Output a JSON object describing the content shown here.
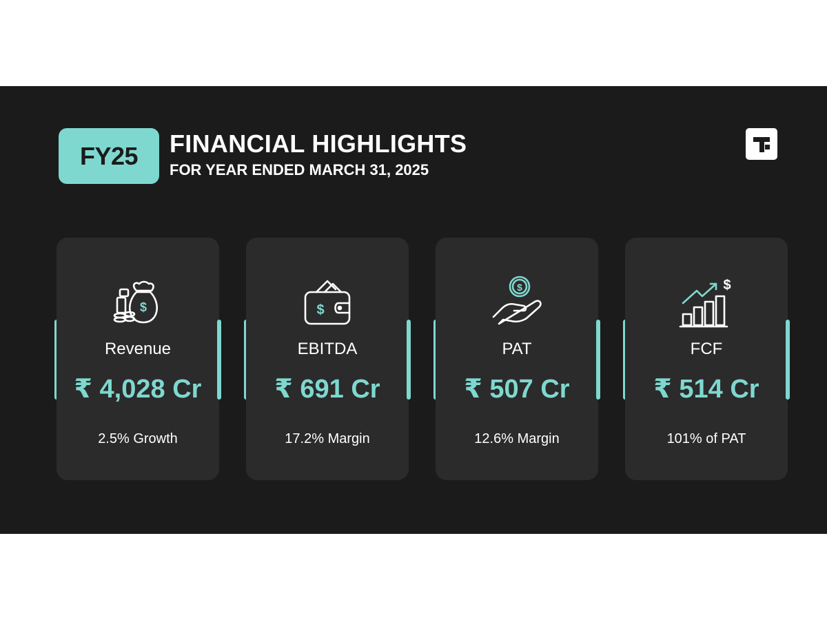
{
  "header": {
    "badge": "FY25",
    "title": "FINANCIAL HIGHLIGHTS",
    "subtitle": "FOR YEAR ENDED MARCH 31, 2025",
    "logo_icon": "brand-logo-icon"
  },
  "colors": {
    "background": "#1b1b1b",
    "card": "#2b2b2b",
    "accent": "#7fd8cf",
    "text": "#ffffff"
  },
  "cards": [
    {
      "icon": "money-bag-coins-icon",
      "label": "Revenue",
      "value": "₹ 4,028 Cr",
      "note": "2.5% Growth"
    },
    {
      "icon": "wallet-icon",
      "label": "EBITDA",
      "value": "₹ 691 Cr",
      "note": "17.2% Margin"
    },
    {
      "icon": "hand-coin-icon",
      "label": "PAT",
      "value": "₹ 507 Cr",
      "note": "12.6% Margin"
    },
    {
      "icon": "growth-chart-icon",
      "label": "FCF",
      "value": "₹ 514 Cr",
      "note": "101% of PAT"
    }
  ]
}
